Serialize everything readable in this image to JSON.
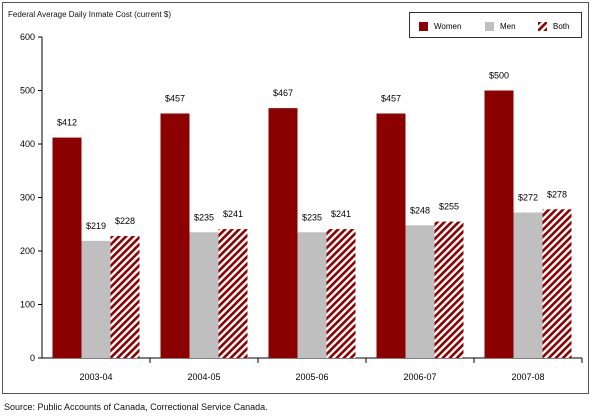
{
  "chart_data": {
    "type": "bar",
    "title": "Federal Average Daily Inmate Cost (current $)",
    "categories": [
      "2003-04",
      "2004-05",
      "2005-06",
      "2006-07",
      "2007-08"
    ],
    "series": [
      {
        "name": "Women",
        "values": [
          412,
          457,
          467,
          457,
          500
        ],
        "labels": [
          "$412",
          "$457",
          "$467",
          "$457",
          "$500"
        ],
        "color": "#8b0000",
        "pattern": "solid"
      },
      {
        "name": "Men",
        "values": [
          219,
          235,
          235,
          248,
          272
        ],
        "labels": [
          "$219",
          "$235",
          "$235",
          "$248",
          "$272"
        ],
        "color": "#bfbfbf",
        "pattern": "solid"
      },
      {
        "name": "Both",
        "values": [
          228,
          241,
          241,
          255,
          278
        ],
        "labels": [
          "$228",
          "$241",
          "$241",
          "$255",
          "$278"
        ],
        "color": "#8b0000",
        "pattern": "diagonal-stripes"
      }
    ],
    "ylim": [
      0,
      600
    ],
    "yticks": [
      "0",
      "100",
      "200",
      "300",
      "400",
      "500",
      "600"
    ],
    "xlabel": "",
    "ylabel": "",
    "grid": false,
    "legend_position": "top-right"
  },
  "source_note": "Source: Public Accounts of Canada, Correctional Service Canada."
}
